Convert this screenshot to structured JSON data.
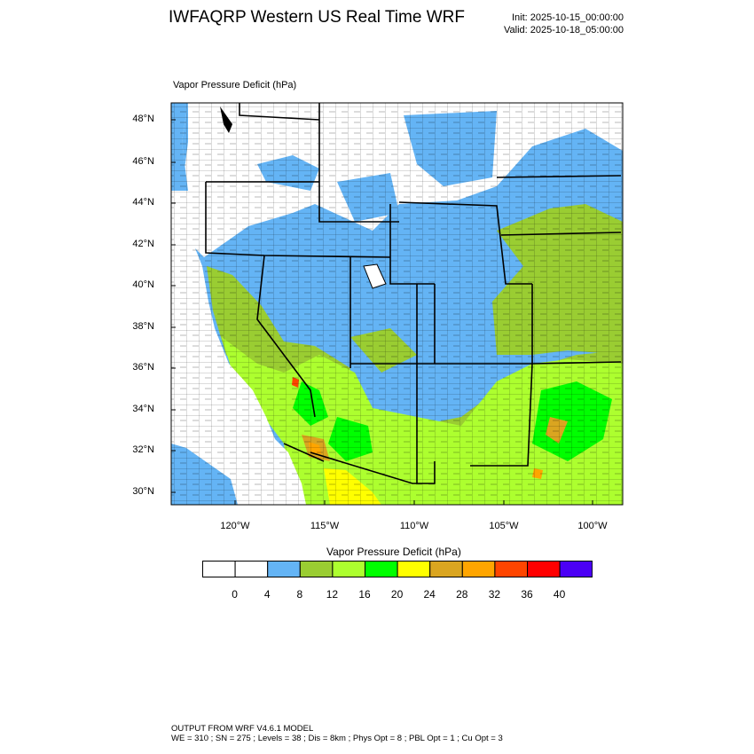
{
  "header": {
    "title": "IWFAQRP Western US Real Time WRF",
    "init": "Init: 2025-10-15_00:00:00",
    "valid": "Valid: 2025-10-18_05:00:00"
  },
  "map": {
    "subtitle": "Vapor Pressure Deficit   (hPa)",
    "lat_labels": [
      "48°N",
      "46°N",
      "44°N",
      "42°N",
      "40°N",
      "38°N",
      "36°N",
      "34°N",
      "32°N",
      "30°N"
    ],
    "lon_labels": [
      "120°W",
      "115°W",
      "110°W",
      "105°W",
      "100°W"
    ]
  },
  "legend": {
    "title": "Vapor Pressure Deficit  (hPa)",
    "colors": [
      "#ffffff",
      "#ffffff",
      "#64b4f5",
      "#9acd32",
      "#adff2f",
      "#00ff00",
      "#ffff00",
      "#daa520",
      "#ffa500",
      "#ff4500",
      "#ff0000",
      "#4b00f5"
    ],
    "ticks": [
      "0",
      "4",
      "8",
      "12",
      "16",
      "20",
      "24",
      "28",
      "32",
      "36",
      "40"
    ]
  },
  "footer": {
    "line1": "OUTPUT FROM WRF V4.6.1 MODEL",
    "line2": "WE = 310 ; SN = 275 ; Levels = 38 ; Dis = 8km ; Phys Opt = 8 ; PBL Opt = 1 ; Cu Opt = 3"
  }
}
